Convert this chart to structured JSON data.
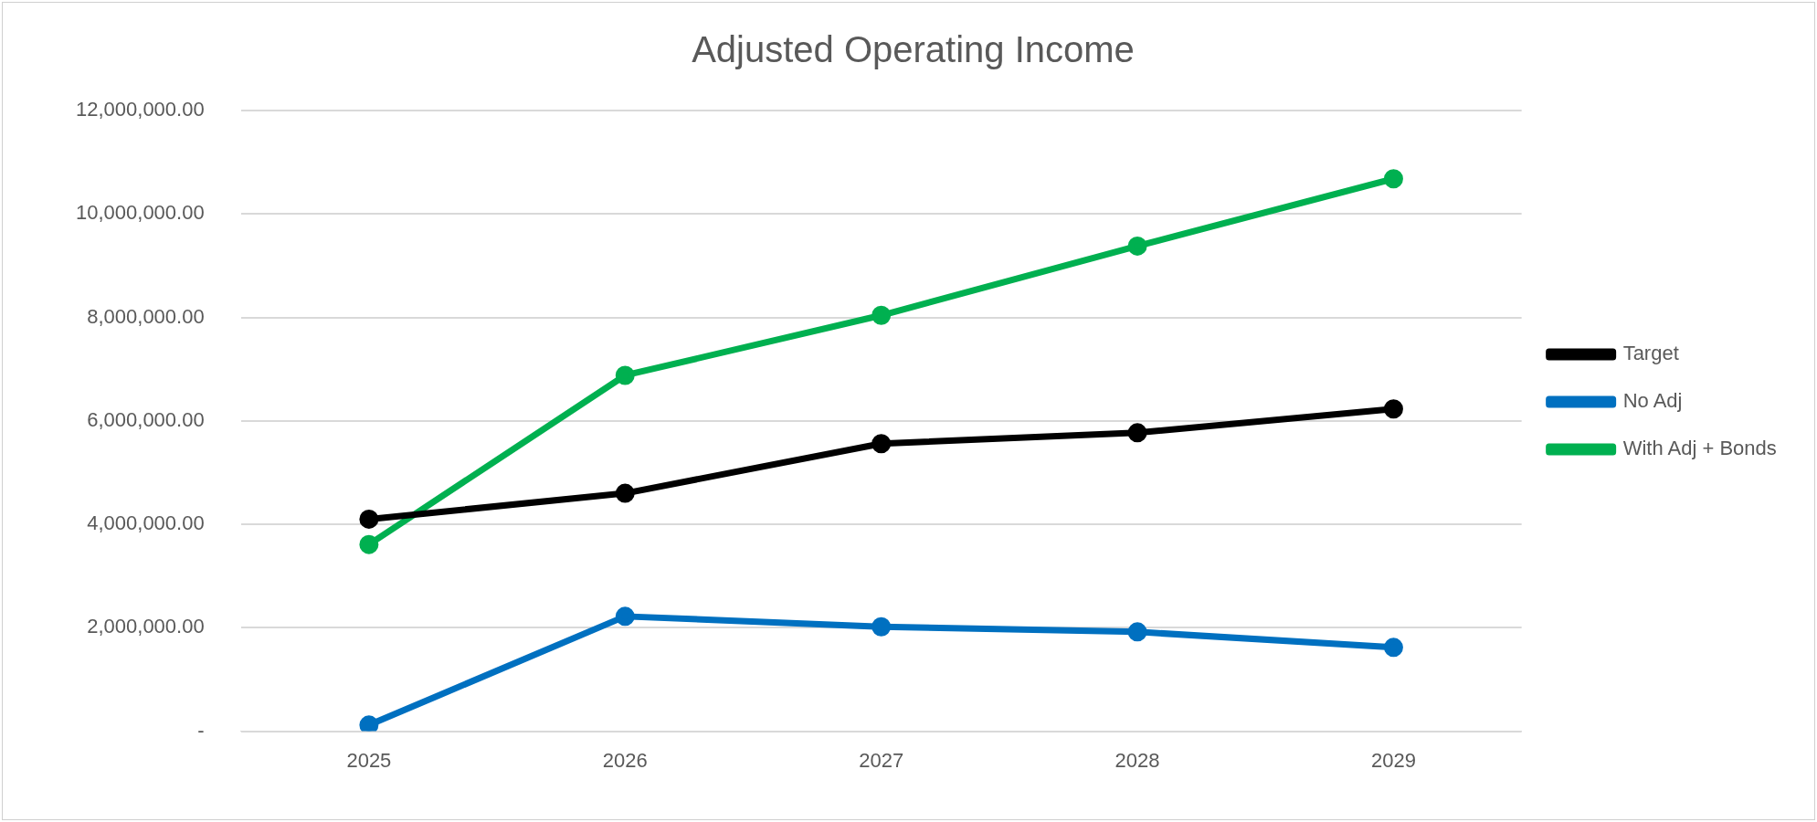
{
  "chart_data": {
    "type": "line",
    "title": "Adjusted Operating Income",
    "categories": [
      "2025",
      "2026",
      "2027",
      "2028",
      "2029"
    ],
    "series": [
      {
        "name": "Target",
        "color": "#000000",
        "values": [
          4100000,
          4600000,
          5560000,
          5770000,
          6230000
        ]
      },
      {
        "name": "No Adj",
        "color": "#0070c0",
        "values": [
          120000,
          2220000,
          2020000,
          1920000,
          1620000
        ]
      },
      {
        "name": "With Adj + Bonds",
        "color": "#00b050",
        "values": [
          3610000,
          6880000,
          8040000,
          9380000,
          10680000
        ]
      }
    ],
    "ylim": [
      0,
      12000000
    ],
    "yticks": [
      {
        "value": 0,
        "label": "-"
      },
      {
        "value": 2000000,
        "label": "2,000,000.00"
      },
      {
        "value": 4000000,
        "label": "4,000,000.00"
      },
      {
        "value": 6000000,
        "label": "6,000,000.00"
      },
      {
        "value": 8000000,
        "label": "8,000,000.00"
      },
      {
        "value": 10000000,
        "label": "10,000,000.00"
      },
      {
        "value": 12000000,
        "label": "12,000,000.00"
      }
    ],
    "grid": "y",
    "legend": "right",
    "marker": "circle",
    "line_style": "solid"
  }
}
